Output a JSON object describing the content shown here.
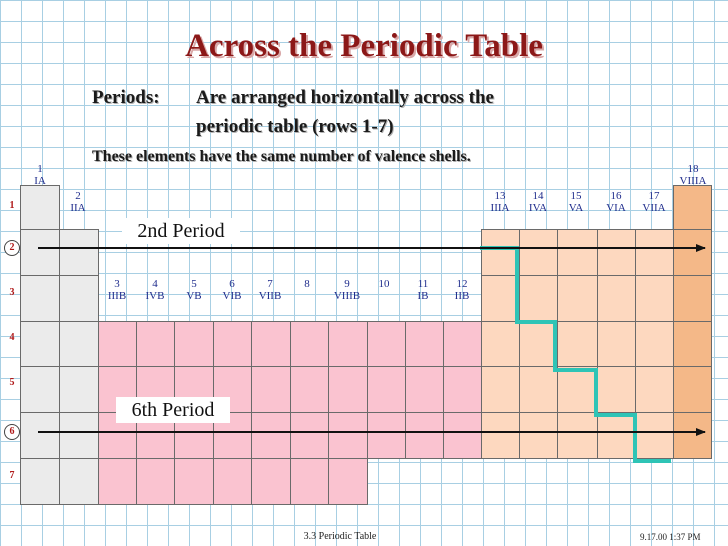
{
  "slide": {
    "title": "Across the Periodic Table",
    "periods_label": "Periods:",
    "periods_text_line1": "Are arranged horizontally across the",
    "periods_text_line2": "periodic table (rows 1-7)",
    "valence_text": "These elements have the same number of valence shells.",
    "period_annotations": {
      "second": "2nd Period",
      "sixth": "6th Period"
    },
    "footer": {
      "center": "3.3  Periodic Table",
      "right": "9.17.00 1:37 PM"
    }
  },
  "group_labels": [
    {
      "num": "1",
      "roman": "IA"
    },
    {
      "num": "2",
      "roman": "IIA"
    },
    {
      "num": "3",
      "roman": "IIIB"
    },
    {
      "num": "4",
      "roman": "IVB"
    },
    {
      "num": "5",
      "roman": "VB"
    },
    {
      "num": "6",
      "roman": "VIB"
    },
    {
      "num": "7",
      "roman": "VIIB"
    },
    {
      "num": "8",
      "roman": ""
    },
    {
      "num": "9",
      "roman": "VIIIB"
    },
    {
      "num": "10",
      "roman": ""
    },
    {
      "num": "11",
      "roman": "IB"
    },
    {
      "num": "12",
      "roman": "IIB"
    },
    {
      "num": "13",
      "roman": "IIIA"
    },
    {
      "num": "14",
      "roman": "IVA"
    },
    {
      "num": "15",
      "roman": "VA"
    },
    {
      "num": "16",
      "roman": "VIA"
    },
    {
      "num": "17",
      "roman": "VIIA"
    },
    {
      "num": "18",
      "roman": "VIIIA"
    }
  ],
  "row_labels": [
    "1",
    "2",
    "3",
    "4",
    "5",
    "6",
    "7"
  ],
  "highlighted_rows": [
    "2",
    "6"
  ],
  "colors": {
    "title": "#8c1818",
    "s_block": "#ebebeb",
    "d_block": "#fac3d0",
    "p_block": "#fdd8bf",
    "noble_gas": "#f4b888",
    "staircase": "#2ec4b6",
    "grid": "#a8cfe3"
  }
}
